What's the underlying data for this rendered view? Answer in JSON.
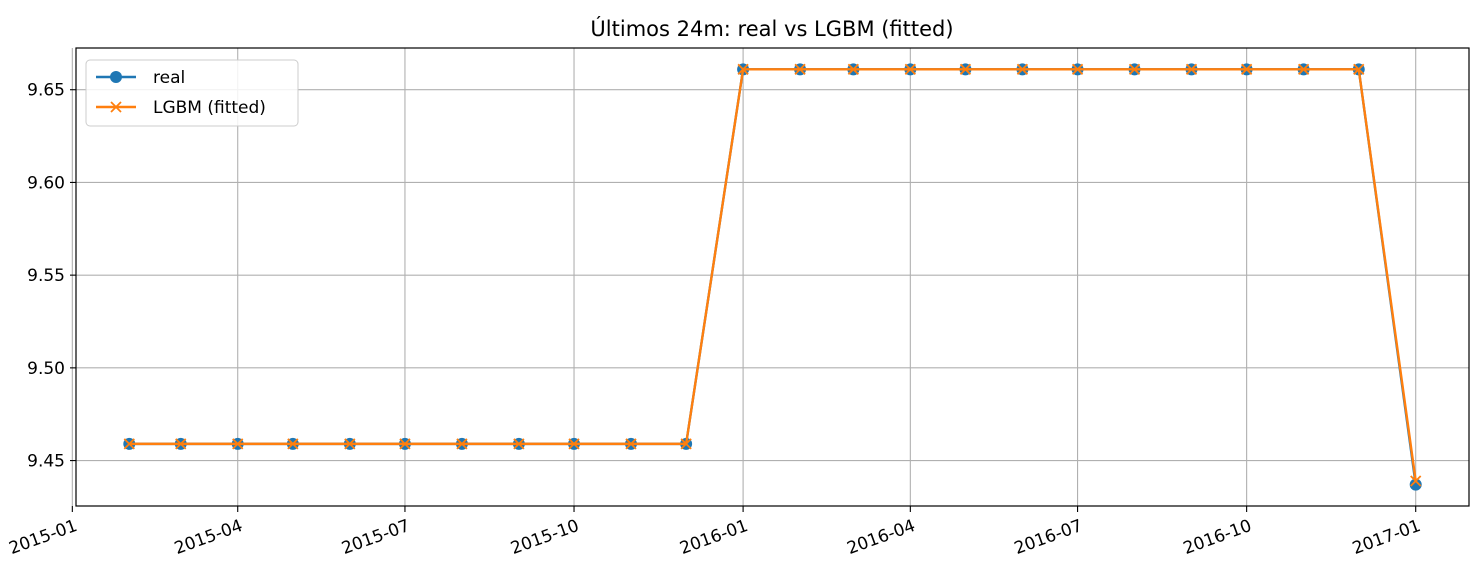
{
  "chart_data": {
    "type": "line",
    "title": "Últimos 24m: real vs LGBM (fitted)",
    "xlabel": "",
    "ylabel": "",
    "x": [
      "2015-02-01",
      "2015-03-01",
      "2015-04-01",
      "2015-05-01",
      "2015-06-01",
      "2015-07-01",
      "2015-08-01",
      "2015-09-01",
      "2015-10-01",
      "2015-11-01",
      "2015-12-01",
      "2016-01-01",
      "2016-02-01",
      "2016-03-01",
      "2016-04-01",
      "2016-05-01",
      "2016-06-01",
      "2016-07-01",
      "2016-08-01",
      "2016-09-01",
      "2016-10-01",
      "2016-11-01",
      "2016-12-01",
      "2017-01-01"
    ],
    "series": [
      {
        "name": "real",
        "color": "#1f77b4",
        "marker": "circle",
        "values": [
          9.459,
          9.459,
          9.459,
          9.459,
          9.459,
          9.459,
          9.459,
          9.459,
          9.459,
          9.459,
          9.459,
          9.661,
          9.661,
          9.661,
          9.661,
          9.661,
          9.661,
          9.661,
          9.661,
          9.661,
          9.661,
          9.661,
          9.661,
          9.437
        ]
      },
      {
        "name": "LGBM (fitted)",
        "color": "#ff7f0e",
        "marker": "x",
        "values": [
          9.459,
          9.459,
          9.459,
          9.459,
          9.459,
          9.459,
          9.459,
          9.459,
          9.459,
          9.459,
          9.459,
          9.661,
          9.661,
          9.661,
          9.661,
          9.661,
          9.661,
          9.661,
          9.661,
          9.661,
          9.661,
          9.661,
          9.661,
          9.439
        ]
      }
    ],
    "xlim": [
      "2015-01-03",
      "2017-01-30"
    ],
    "ylim": [
      9.4255,
      9.6725
    ],
    "x_ticks": [
      "2015-01",
      "2015-04",
      "2015-07",
      "2015-10",
      "2016-01",
      "2016-04",
      "2016-07",
      "2016-10",
      "2017-01"
    ],
    "y_ticks": [
      "9.45",
      "9.50",
      "9.55",
      "9.60",
      "9.65"
    ],
    "grid": true,
    "legend": "upper-left"
  }
}
